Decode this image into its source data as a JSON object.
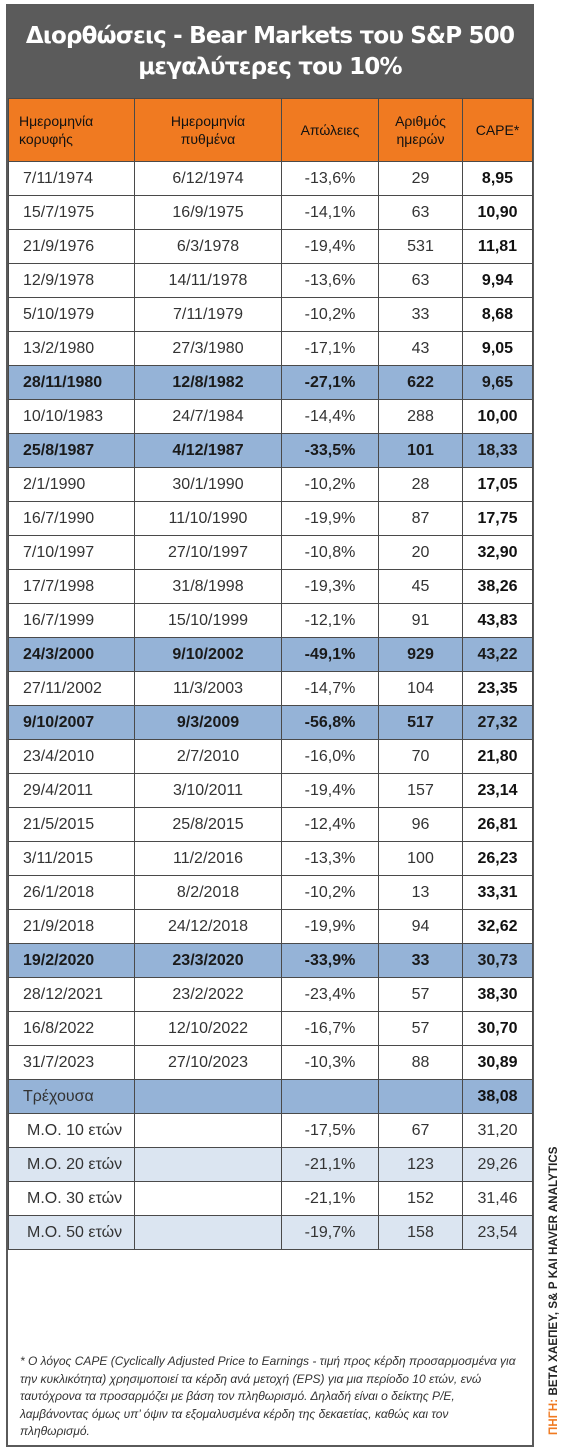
{
  "title": {
    "line1": "Διορθώσεις - Bear Markets του S&P 500",
    "line2": "μεγαλύτερες του 10%"
  },
  "headers": {
    "peak_date": [
      "Ημερομηνία",
      "κορυφής"
    ],
    "trough_date": [
      "Ημερομηνία",
      "πυθμένα"
    ],
    "losses": "Απώλειες",
    "days": [
      "Αριθμός",
      "ημερών"
    ],
    "cape": "CAPE*"
  },
  "rows": [
    {
      "peak": "7/11/1974",
      "trough": "6/12/1974",
      "loss": "-13,6%",
      "days": "29",
      "cape": "8,95",
      "highlight": false
    },
    {
      "peak": "15/7/1975",
      "trough": "16/9/1975",
      "loss": "-14,1%",
      "days": "63",
      "cape": "10,90",
      "highlight": false
    },
    {
      "peak": "21/9/1976",
      "trough": "6/3/1978",
      "loss": "-19,4%",
      "days": "531",
      "cape": "11,81",
      "highlight": false
    },
    {
      "peak": "12/9/1978",
      "trough": "14/11/1978",
      "loss": "-13,6%",
      "days": "63",
      "cape": "9,94",
      "highlight": false
    },
    {
      "peak": "5/10/1979",
      "trough": "7/11/1979",
      "loss": "-10,2%",
      "days": "33",
      "cape": "8,68",
      "highlight": false
    },
    {
      "peak": "13/2/1980",
      "trough": "27/3/1980",
      "loss": "-17,1%",
      "days": "43",
      "cape": "9,05",
      "highlight": false
    },
    {
      "peak": "28/11/1980",
      "trough": "12/8/1982",
      "loss": "-27,1%",
      "days": "622",
      "cape": "9,65",
      "highlight": true
    },
    {
      "peak": "10/10/1983",
      "trough": "24/7/1984",
      "loss": "-14,4%",
      "days": "288",
      "cape": "10,00",
      "highlight": false
    },
    {
      "peak": "25/8/1987",
      "trough": "4/12/1987",
      "loss": "-33,5%",
      "days": "101",
      "cape": "18,33",
      "highlight": true
    },
    {
      "peak": "2/1/1990",
      "trough": "30/1/1990",
      "loss": "-10,2%",
      "days": "28",
      "cape": "17,05",
      "highlight": false
    },
    {
      "peak": "16/7/1990",
      "trough": "11/10/1990",
      "loss": "-19,9%",
      "days": "87",
      "cape": "17,75",
      "highlight": false
    },
    {
      "peak": "7/10/1997",
      "trough": "27/10/1997",
      "loss": "-10,8%",
      "days": "20",
      "cape": "32,90",
      "highlight": false
    },
    {
      "peak": "17/7/1998",
      "trough": "31/8/1998",
      "loss": "-19,3%",
      "days": "45",
      "cape": "38,26",
      "highlight": false
    },
    {
      "peak": "16/7/1999",
      "trough": "15/10/1999",
      "loss": "-12,1%",
      "days": "91",
      "cape": "43,83",
      "highlight": false
    },
    {
      "peak": "24/3/2000",
      "trough": "9/10/2002",
      "loss": "-49,1%",
      "days": "929",
      "cape": "43,22",
      "highlight": true
    },
    {
      "peak": "27/11/2002",
      "trough": "11/3/2003",
      "loss": "-14,7%",
      "days": "104",
      "cape": "23,35",
      "highlight": false
    },
    {
      "peak": "9/10/2007",
      "trough": "9/3/2009",
      "loss": "-56,8%",
      "days": "517",
      "cape": "27,32",
      "highlight": true
    },
    {
      "peak": "23/4/2010",
      "trough": "2/7/2010",
      "loss": "-16,0%",
      "days": "70",
      "cape": "21,80",
      "highlight": false
    },
    {
      "peak": "29/4/2011",
      "trough": "3/10/2011",
      "loss": "-19,4%",
      "days": "157",
      "cape": "23,14",
      "highlight": false
    },
    {
      "peak": "21/5/2015",
      "trough": "25/8/2015",
      "loss": "-12,4%",
      "days": "96",
      "cape": "26,81",
      "highlight": false
    },
    {
      "peak": "3/11/2015",
      "trough": "11/2/2016",
      "loss": "-13,3%",
      "days": "100",
      "cape": "26,23",
      "highlight": false
    },
    {
      "peak": "26/1/2018",
      "trough": "8/2/2018",
      "loss": "-10,2%",
      "days": "13",
      "cape": "33,31",
      "highlight": false
    },
    {
      "peak": "21/9/2018",
      "trough": "24/12/2018",
      "loss": "-19,9%",
      "days": "94",
      "cape": "32,62",
      "highlight": false
    },
    {
      "peak": "19/2/2020",
      "trough": "23/3/2020",
      "loss": "-33,9%",
      "days": "33",
      "cape": "30,73",
      "highlight": true
    },
    {
      "peak": "28/12/2021",
      "trough": "23/2/2022",
      "loss": "-23,4%",
      "days": "57",
      "cape": "38,30",
      "highlight": false
    },
    {
      "peak": "16/8/2022",
      "trough": "12/10/2022",
      "loss": "-16,7%",
      "days": "57",
      "cape": "30,70",
      "highlight": false
    },
    {
      "peak": "31/7/2023",
      "trough": "27/10/2023",
      "loss": "-10,3%",
      "days": "88",
      "cape": "30,89",
      "highlight": false
    }
  ],
  "current": {
    "label": "Τρέχουσα",
    "cape": "38,08"
  },
  "averages": [
    {
      "label": "Μ.Ο. 10 ετών",
      "loss": "-17,5%",
      "days": "67",
      "cape": "31,20"
    },
    {
      "label": "Μ.Ο. 20 ετών",
      "loss": "-21,1%",
      "days": "123",
      "cape": "29,26"
    },
    {
      "label": "Μ.Ο. 30 ετών",
      "loss": "-21,1%",
      "days": "152",
      "cape": "31,46"
    },
    {
      "label": "Μ.Ο. 50 ετών",
      "loss": "-19,7%",
      "days": "158",
      "cape": "23,54"
    }
  ],
  "footnote": "* Ο λόγος CAPE (Cyclically Adjusted Price to Earnings - τιμή προς κέρδη προσαρμοσμένα για την κυκλικότητα) χρησιμοποιεί τα κέρδη ανά μετοχή (EPS) για μια περίοδο 10 ετών, ενώ ταυτόχρονα τα προσαρμόζει με βάση τον πληθωρισμό. Δηλαδή είναι ο δείκτης P/E, λαμβάνοντας όμως υπ’ όψιν τα εξομαλυσμένα κέρδη της δεκαετίας, καθώς και τον πληθωρισμό.",
  "source": {
    "lead": "ΠΗΓΗ:",
    "text": " BETA ΧΑΕΠΕΥ, S& P ΚΑΙ HAVER ANALYTICS"
  },
  "colors": {
    "header_orange": "#f07a21",
    "title_gray": "#5b5b5b",
    "highlight_blue": "#95b3d7",
    "average_light_blue": "#dbe5f1"
  }
}
